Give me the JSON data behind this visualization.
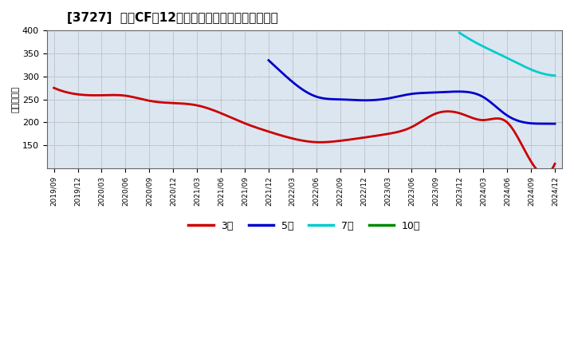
{
  "title": "[3727]  営業CFの12か月移動合計の標準偏差の推移",
  "ylabel": "（百万円）",
  "ylim": [
    100,
    400
  ],
  "yticks": [
    150,
    200,
    250,
    300,
    350,
    400
  ],
  "background_color": "#ffffff",
  "plot_bg_color": "#dce6f0",
  "grid_color": "#aaaaaa",
  "series": {
    "3年": {
      "color": "#cc0000",
      "dates": [
        "2019/09",
        "2019/12",
        "2020/03",
        "2020/06",
        "2020/09",
        "2020/12",
        "2021/03",
        "2021/06",
        "2021/09",
        "2021/12",
        "2022/03",
        "2022/06",
        "2022/09",
        "2022/12",
        "2023/03",
        "2023/06",
        "2023/09",
        "2023/12",
        "2024/03",
        "2024/06",
        "2024/09",
        "2024/12"
      ],
      "values": [
        275,
        261,
        259,
        258,
        247,
        242,
        237,
        220,
        198,
        180,
        165,
        157,
        160,
        167,
        175,
        190,
        219,
        220,
        205,
        200,
        115,
        110
      ]
    },
    "5年": {
      "color": "#0000cc",
      "dates": [
        "2021/12",
        "2022/03",
        "2022/06",
        "2022/09",
        "2022/12",
        "2023/03",
        "2023/06",
        "2023/09",
        "2023/12",
        "2024/03",
        "2024/06",
        "2024/09",
        "2024/12"
      ],
      "values": [
        335,
        288,
        256,
        250,
        248,
        252,
        262,
        265,
        267,
        255,
        215,
        198,
        197
      ]
    },
    "7年": {
      "color": "#00cccc",
      "dates": [
        "2023/12",
        "2024/03",
        "2024/06",
        "2024/09",
        "2024/12"
      ],
      "values": [
        395,
        365,
        340,
        315,
        302
      ]
    },
    "10年": {
      "color": "#008800",
      "dates": [],
      "values": []
    }
  },
  "xtick_labels": [
    "2019/09",
    "2019/12",
    "2020/03",
    "2020/06",
    "2020/09",
    "2020/12",
    "2021/03",
    "2021/06",
    "2021/09",
    "2021/12",
    "2022/03",
    "2022/06",
    "2022/09",
    "2022/12",
    "2023/03",
    "2023/06",
    "2023/09",
    "2023/12",
    "2024/03",
    "2024/06",
    "2024/09",
    "2024/12"
  ],
  "legend_order": [
    "3年",
    "5年",
    "7年",
    "10年"
  ]
}
